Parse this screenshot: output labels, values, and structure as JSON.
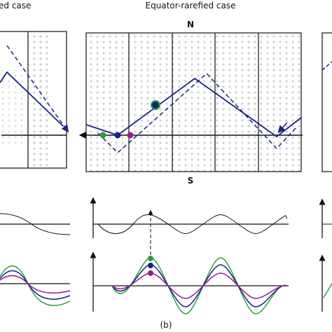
{
  "figure": {
    "left_title": "ed case",
    "center_title": "Equator-rarefied case",
    "north": "N",
    "south": "S",
    "caption": "(b)"
  }
}
